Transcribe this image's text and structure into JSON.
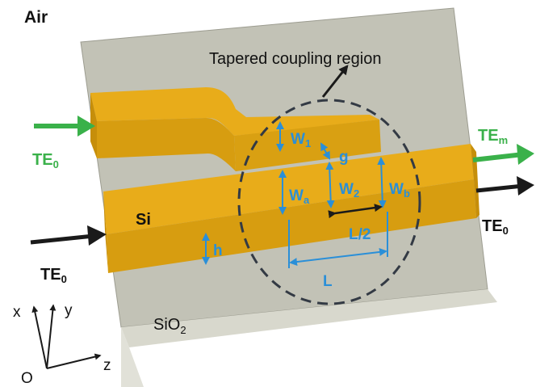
{
  "labels": {
    "air": "Air",
    "coupling_region": "Tapered coupling region",
    "si": "Si",
    "sio2_main": "SiO",
    "sio2_sub": "2",
    "te0_in_top_main": "TE",
    "te0_in_top_sub": "0",
    "te0_in_bottom_main": "TE",
    "te0_in_bottom_sub": "0",
    "te0_out_main": "TE",
    "te0_out_sub": "0",
    "tem_out_main": "TE",
    "tem_out_sub": "m",
    "w1_main": "W",
    "w1_sub": "1",
    "w2_main": "W",
    "w2_sub": "2",
    "wa_main": "W",
    "wa_sub": "a",
    "wb_main": "W",
    "wb_sub": "b",
    "g": "g",
    "h": "h",
    "l_half": "L/2",
    "l": "L",
    "axis_x": "x",
    "axis_y": "y",
    "axis_z": "z",
    "origin": "O"
  },
  "colors": {
    "substrate_top": "#c2c2b6",
    "substrate_side": "#d3d3c8",
    "substrate_front": "#e1e1d8",
    "waveguide_top": "#e8ac1a",
    "waveguide_front": "#d79d10",
    "waveguide_side": "#c68e0a",
    "dimension": "#2a8fd8",
    "input_arrow": "#3ab14a",
    "output_arrow": "#1a1a1a",
    "dashed_ellipse": "#333a44"
  }
}
